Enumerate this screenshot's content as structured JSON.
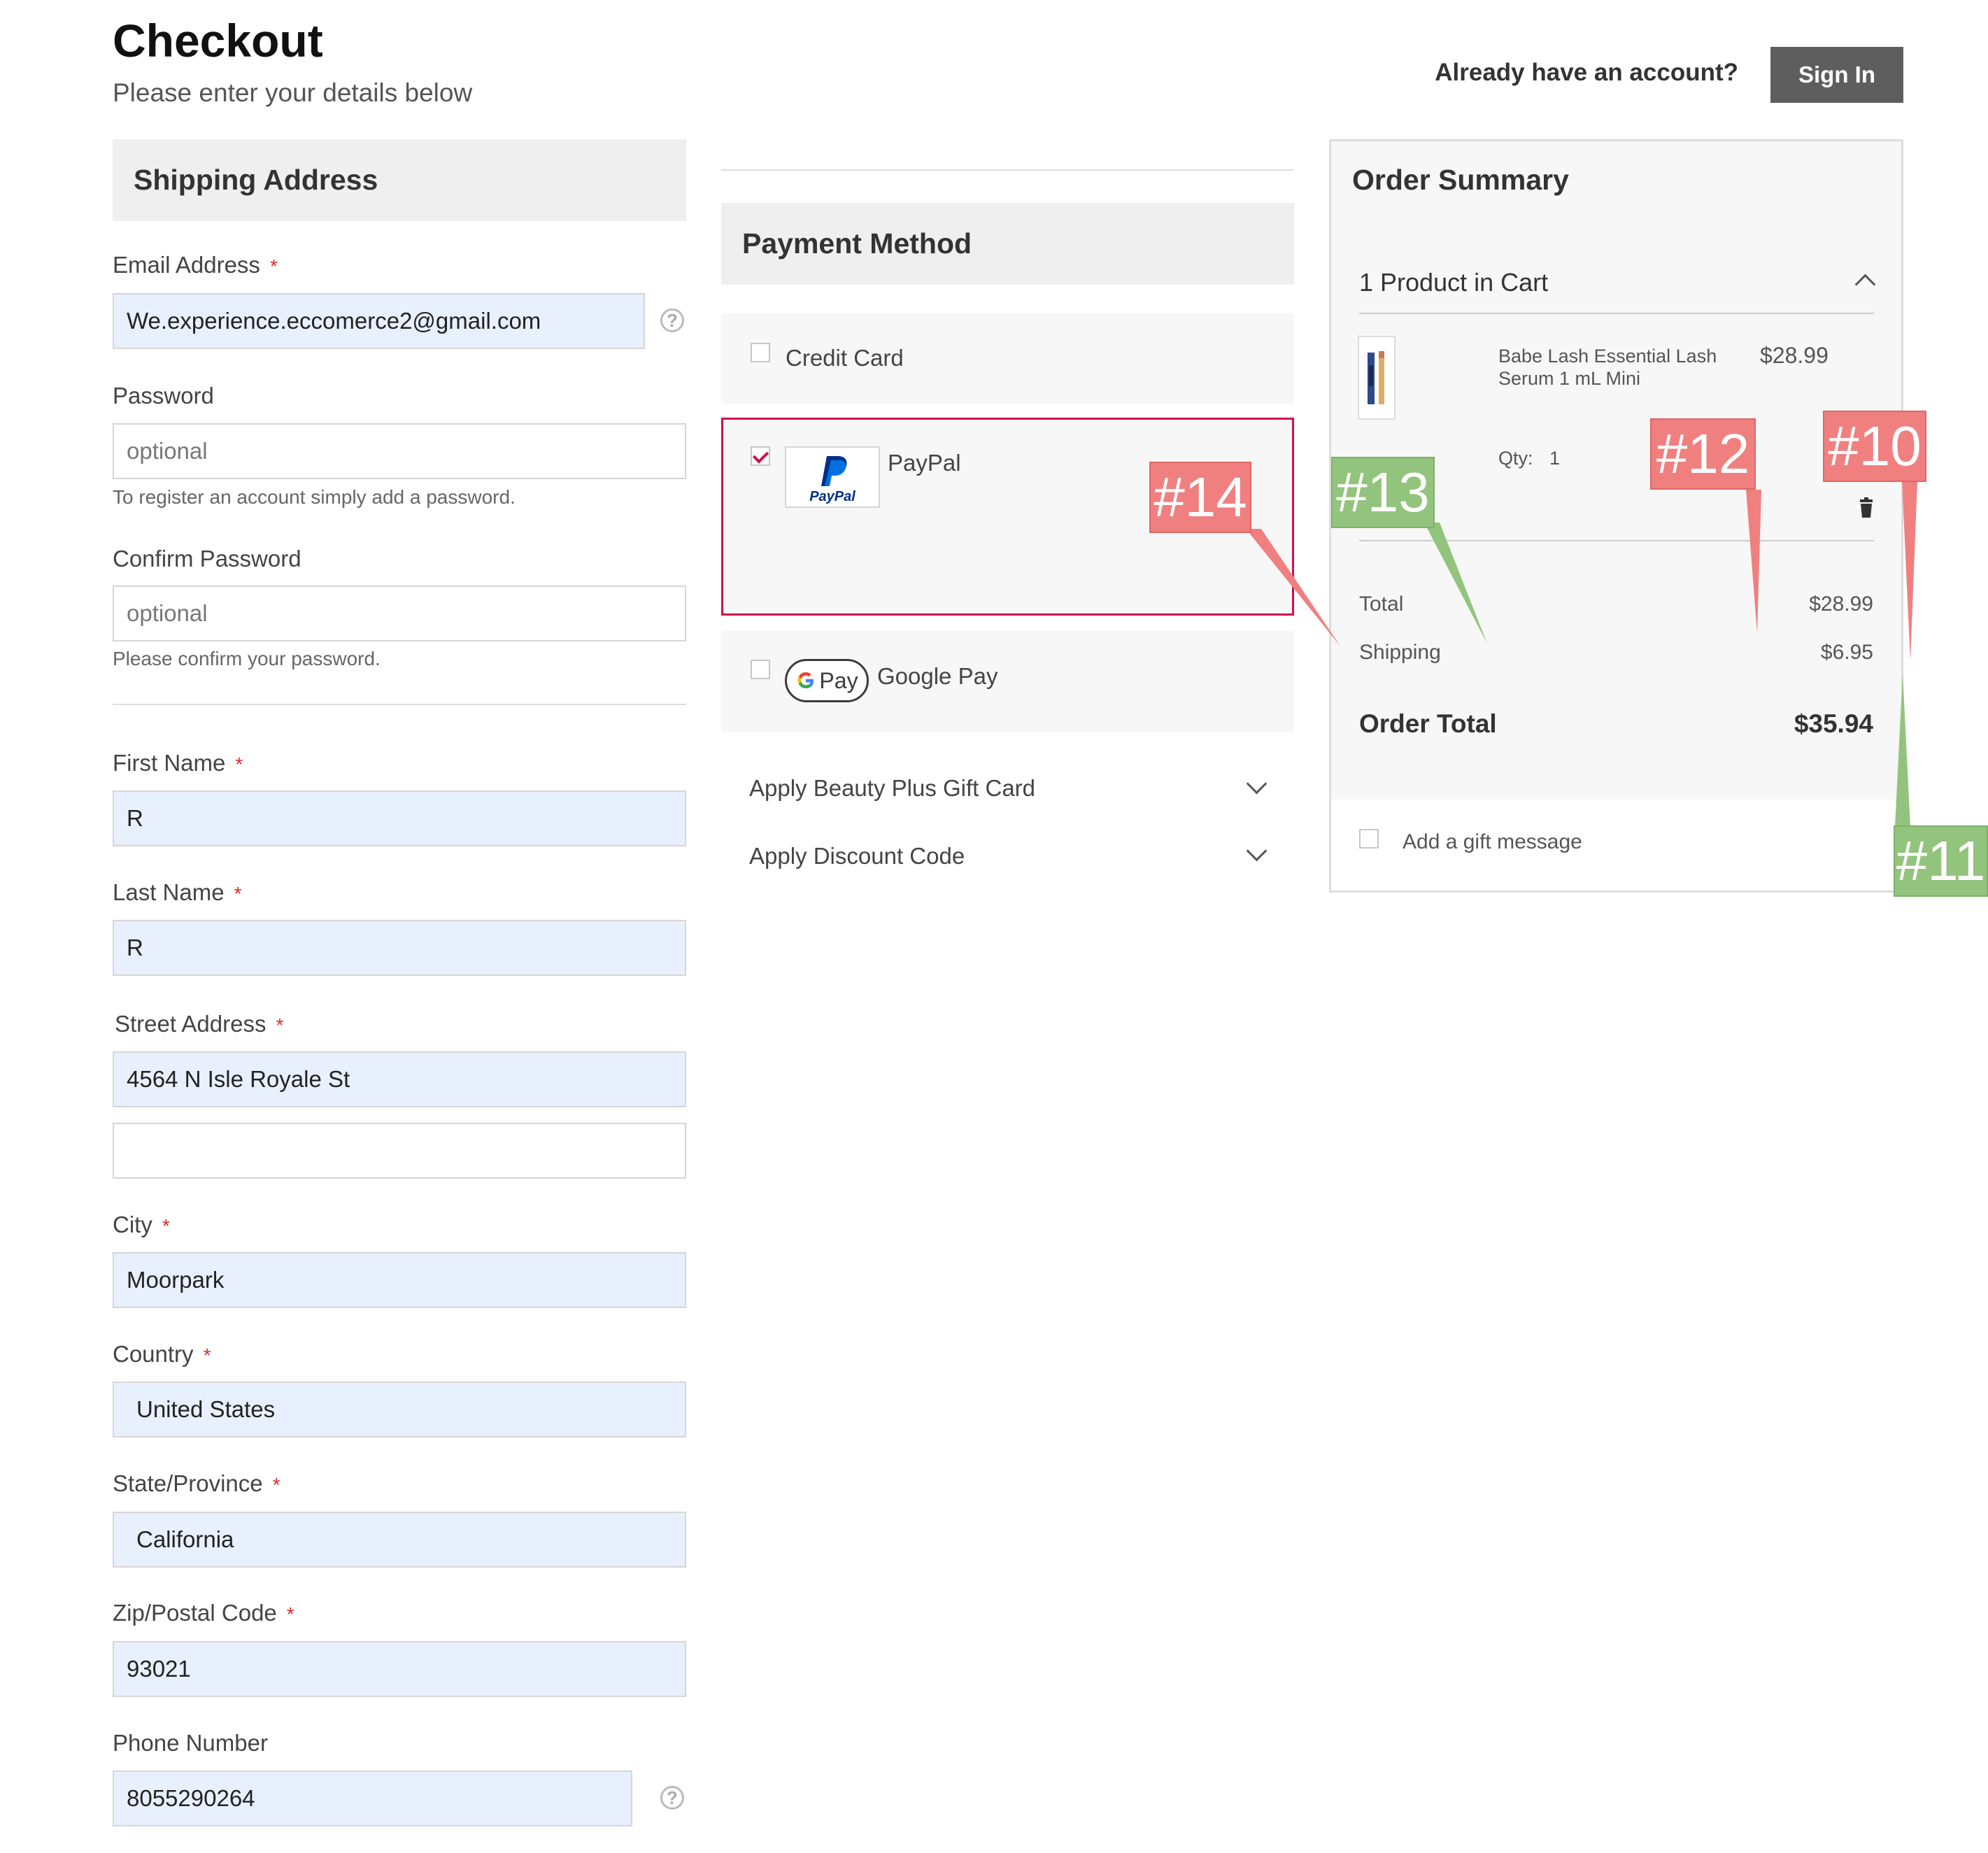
{
  "header": {
    "title": "Checkout",
    "subtitle": "Please enter your details below",
    "account_prompt": "Already have an account?",
    "sign_in_label": "Sign In"
  },
  "shipping": {
    "heading": "Shipping Address",
    "email": {
      "label": "Email Address",
      "required": "*",
      "value": "We.experience.eccomerce2@gmail.com"
    },
    "password": {
      "label": "Password",
      "placeholder": "optional",
      "hint": "To register an account simply add a password."
    },
    "confirm_password": {
      "label": "Confirm Password",
      "placeholder": "optional",
      "hint": "Please confirm your password."
    },
    "first_name": {
      "label": "First Name",
      "required": "*",
      "value": "R"
    },
    "last_name": {
      "label": "Last Name",
      "required": "*",
      "value": "R"
    },
    "street": {
      "label": "Street Address",
      "required": "*",
      "line1": "4564 N Isle Royale St",
      "line2": ""
    },
    "city": {
      "label": "City",
      "required": "*",
      "value": "Moorpark"
    },
    "country": {
      "label": "Country",
      "required": "*",
      "value": "United States"
    },
    "state": {
      "label": "State/Province",
      "required": "*",
      "value": "California"
    },
    "zip": {
      "label": "Zip/Postal Code",
      "required": "*",
      "value": "93021"
    },
    "phone": {
      "label": "Phone Number",
      "value": "8055290264"
    },
    "help_glyph": "?"
  },
  "payment": {
    "heading": "Payment Method",
    "options": [
      {
        "label": "Credit Card",
        "checked": false
      },
      {
        "label": "PayPal",
        "checked": true,
        "logo_text": "PayPal"
      },
      {
        "label": "Google Pay",
        "checked": false,
        "logo_text": "Pay"
      }
    ],
    "gift_card_label": "Apply Beauty Plus Gift Card",
    "discount_label": "Apply Discount Code"
  },
  "summary": {
    "heading": "Order Summary",
    "cart_count": "1 Product in Cart",
    "item": {
      "name_line1": "Babe Lash Essential Lash",
      "name_line2": "Serum 1 mL Mini",
      "price": "$28.99",
      "qty_label": "Qty:",
      "qty": "1"
    },
    "total_label": "Total",
    "total_value": "$28.99",
    "shipping_label": "Shipping",
    "shipping_value": "$6.95",
    "order_total_label": "Order Total",
    "order_total_value": "$35.94",
    "gift_message_label": "Add a gift message"
  },
  "callouts": {
    "c10": "#10",
    "c11": "#11",
    "c12": "#12",
    "c13": "#13",
    "c14": "#14"
  },
  "colors": {
    "accent_pink": "#d0104c",
    "sign_in_bg": "#5e5e5e",
    "callout_red": "#f08080",
    "callout_green": "#93c47d",
    "autofill_bg": "#e8f0fe"
  }
}
